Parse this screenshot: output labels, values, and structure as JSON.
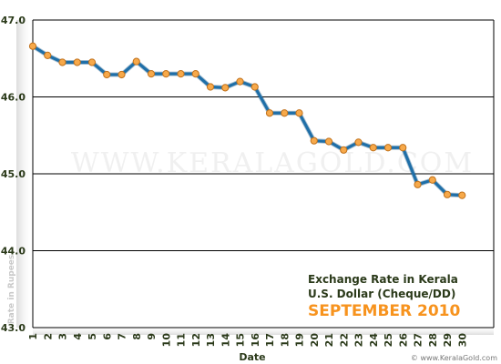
{
  "chart_data": {
    "type": "line",
    "title_lines": [
      "Exchange Rate in Kerala",
      "U.S. Dollar (Cheque/DD)"
    ],
    "subtitle": "SEPTEMBER 2010",
    "xlabel": "Date",
    "ylabel": "Rate in Rupees",
    "watermark": "WWW.KERALAGOLD.COM",
    "credit": "© www.KeralaGold.com",
    "categories": [
      "1",
      "2",
      "3",
      "4",
      "5",
      "6",
      "7",
      "8",
      "9",
      "10",
      "11",
      "12",
      "13",
      "14",
      "15",
      "16",
      "17",
      "18",
      "19",
      "20",
      "21",
      "22",
      "23",
      "24",
      "25",
      "26",
      "27",
      "28",
      "29",
      "30"
    ],
    "values": [
      46.66,
      46.54,
      46.45,
      46.45,
      46.45,
      46.29,
      46.29,
      46.46,
      46.3,
      46.3,
      46.3,
      46.3,
      46.13,
      46.12,
      46.2,
      46.13,
      45.79,
      45.79,
      45.79,
      45.43,
      45.42,
      45.31,
      45.41,
      45.34,
      45.34,
      45.34,
      44.86,
      44.92,
      44.73,
      44.72
    ],
    "ylim": [
      43.0,
      47.0
    ],
    "yticks": [
      "43.0",
      "44.0",
      "45.0",
      "46.0",
      "47.0"
    ],
    "grid": true,
    "line_color": "#1f6fa8",
    "marker_fill": "#f7a94a",
    "marker_stroke": "#c0711b",
    "gridline_color": "#000000"
  }
}
